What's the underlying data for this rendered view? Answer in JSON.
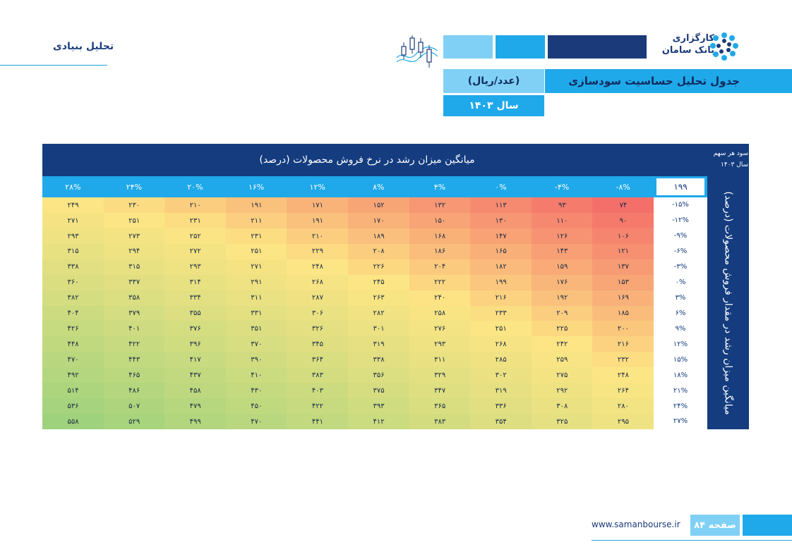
{
  "header": {
    "section_title": "تحلیل بنیادی",
    "logo_line1": "کارگزاری",
    "logo_line2": "بانک سامان",
    "table_title": "جدول تحلیل حساسیت سودسازی",
    "unit": "(عدد/ریال)",
    "year": "سال ۱۴۰۳"
  },
  "table": {
    "column_axis_title": "میانگین میزان رشد در نرخ فروش محصولات (درصد)",
    "row_axis_title": "میانگین میزان رشد در مقدار فروش محصولات (درصد)",
    "eps_label_line1": "سود هر سهم",
    "eps_label_line2": "سال ۱۴۰۳",
    "base_value": "۱۹۹",
    "columns": [
      "۲۸%",
      "۲۴%",
      "۲۰%",
      "۱۶%",
      "۱۲%",
      "۸%",
      "۴%",
      "۰%",
      "-۴%",
      "-۸%"
    ],
    "rows": [
      "-۱۵%",
      "-۱۲%",
      "-۹%",
      "-۶%",
      "-۳%",
      "۰%",
      "۳%",
      "۶%",
      "۹%",
      "۱۲%",
      "۱۵%",
      "۱۸%",
      "۲۱%",
      "۲۴%",
      "۲۷%"
    ],
    "cells": [
      [
        "۲۴۹",
        "۲۳۰",
        "۲۱۰",
        "۱۹۱",
        "۱۷۱",
        "۱۵۲",
        "۱۳۲",
        "۱۱۳",
        "۹۳",
        "۷۴"
      ],
      [
        "۲۷۱",
        "۲۵۱",
        "۲۳۱",
        "۲۱۱",
        "۱۹۱",
        "۱۷۰",
        "۱۵۰",
        "۱۳۰",
        "۱۱۰",
        "۹۰"
      ],
      [
        "۲۹۳",
        "۲۷۳",
        "۲۵۲",
        "۲۳۱",
        "۲۱۰",
        "۱۸۹",
        "۱۶۸",
        "۱۴۷",
        "۱۲۶",
        "۱۰۶"
      ],
      [
        "۳۱۵",
        "۲۹۴",
        "۲۷۲",
        "۲۵۱",
        "۲۲۹",
        "۲۰۸",
        "۱۸۶",
        "۱۶۵",
        "۱۴۳",
        "۱۲۱"
      ],
      [
        "۳۳۸",
        "۳۱۵",
        "۲۹۳",
        "۲۷۱",
        "۲۴۸",
        "۲۲۶",
        "۲۰۴",
        "۱۸۲",
        "۱۵۹",
        "۱۳۷"
      ],
      [
        "۳۶۰",
        "۳۳۷",
        "۳۱۴",
        "۲۹۱",
        "۲۶۸",
        "۲۴۵",
        "۲۲۲",
        "۱۹۹",
        "۱۷۶",
        "۱۵۳"
      ],
      [
        "۳۸۲",
        "۳۵۸",
        "۳۳۴",
        "۳۱۱",
        "۲۸۷",
        "۲۶۳",
        "۲۴۰",
        "۲۱۶",
        "۱۹۲",
        "۱۶۹"
      ],
      [
        "۴۰۴",
        "۳۷۹",
        "۳۵۵",
        "۳۳۱",
        "۳۰۶",
        "۲۸۲",
        "۲۵۸",
        "۲۳۳",
        "۲۰۹",
        "۱۸۵"
      ],
      [
        "۴۲۶",
        "۴۰۱",
        "۳۷۶",
        "۳۵۱",
        "۳۲۶",
        "۳۰۱",
        "۲۷۶",
        "۲۵۱",
        "۲۲۵",
        "۲۰۰"
      ],
      [
        "۴۴۸",
        "۴۲۲",
        "۳۹۶",
        "۳۷۰",
        "۳۴۵",
        "۳۱۹",
        "۲۹۳",
        "۲۶۸",
        "۲۴۲",
        "۲۱۶"
      ],
      [
        "۴۷۰",
        "۴۴۳",
        "۴۱۷",
        "۳۹۰",
        "۳۶۴",
        "۳۳۸",
        "۳۱۱",
        "۲۸۵",
        "۲۵۹",
        "۲۳۲"
      ],
      [
        "۴۹۲",
        "۴۶۵",
        "۴۳۷",
        "۴۱۰",
        "۳۸۳",
        "۳۵۶",
        "۳۲۹",
        "۳۰۲",
        "۲۷۵",
        "۲۴۸"
      ],
      [
        "۵۱۴",
        "۴۸۶",
        "۴۵۸",
        "۴۳۰",
        "۴۰۳",
        "۳۷۵",
        "۳۴۷",
        "۳۱۹",
        "۲۹۲",
        "۲۶۴"
      ],
      [
        "۵۳۶",
        "۵۰۷",
        "۴۷۹",
        "۴۵۰",
        "۴۲۲",
        "۳۹۳",
        "۳۶۵",
        "۳۳۶",
        "۳۰۸",
        "۲۸۰"
      ],
      [
        "۵۵۸",
        "۵۲۹",
        "۴۹۹",
        "۴۷۰",
        "۴۴۱",
        "۴۱۲",
        "۳۸۳",
        "۳۵۴",
        "۳۲۵",
        "۲۹۵"
      ]
    ]
  },
  "colors": {
    "navy": "#143c7f",
    "blue": "#1fa9ea",
    "light_blue": "#7fd0f4",
    "heat_low": "#f46f6a",
    "heat_mid": "#fde584",
    "heat_high": "#9fd27c"
  },
  "footer": {
    "website": "www.samanbourse.ir",
    "page": "صفحه ۸۴"
  }
}
